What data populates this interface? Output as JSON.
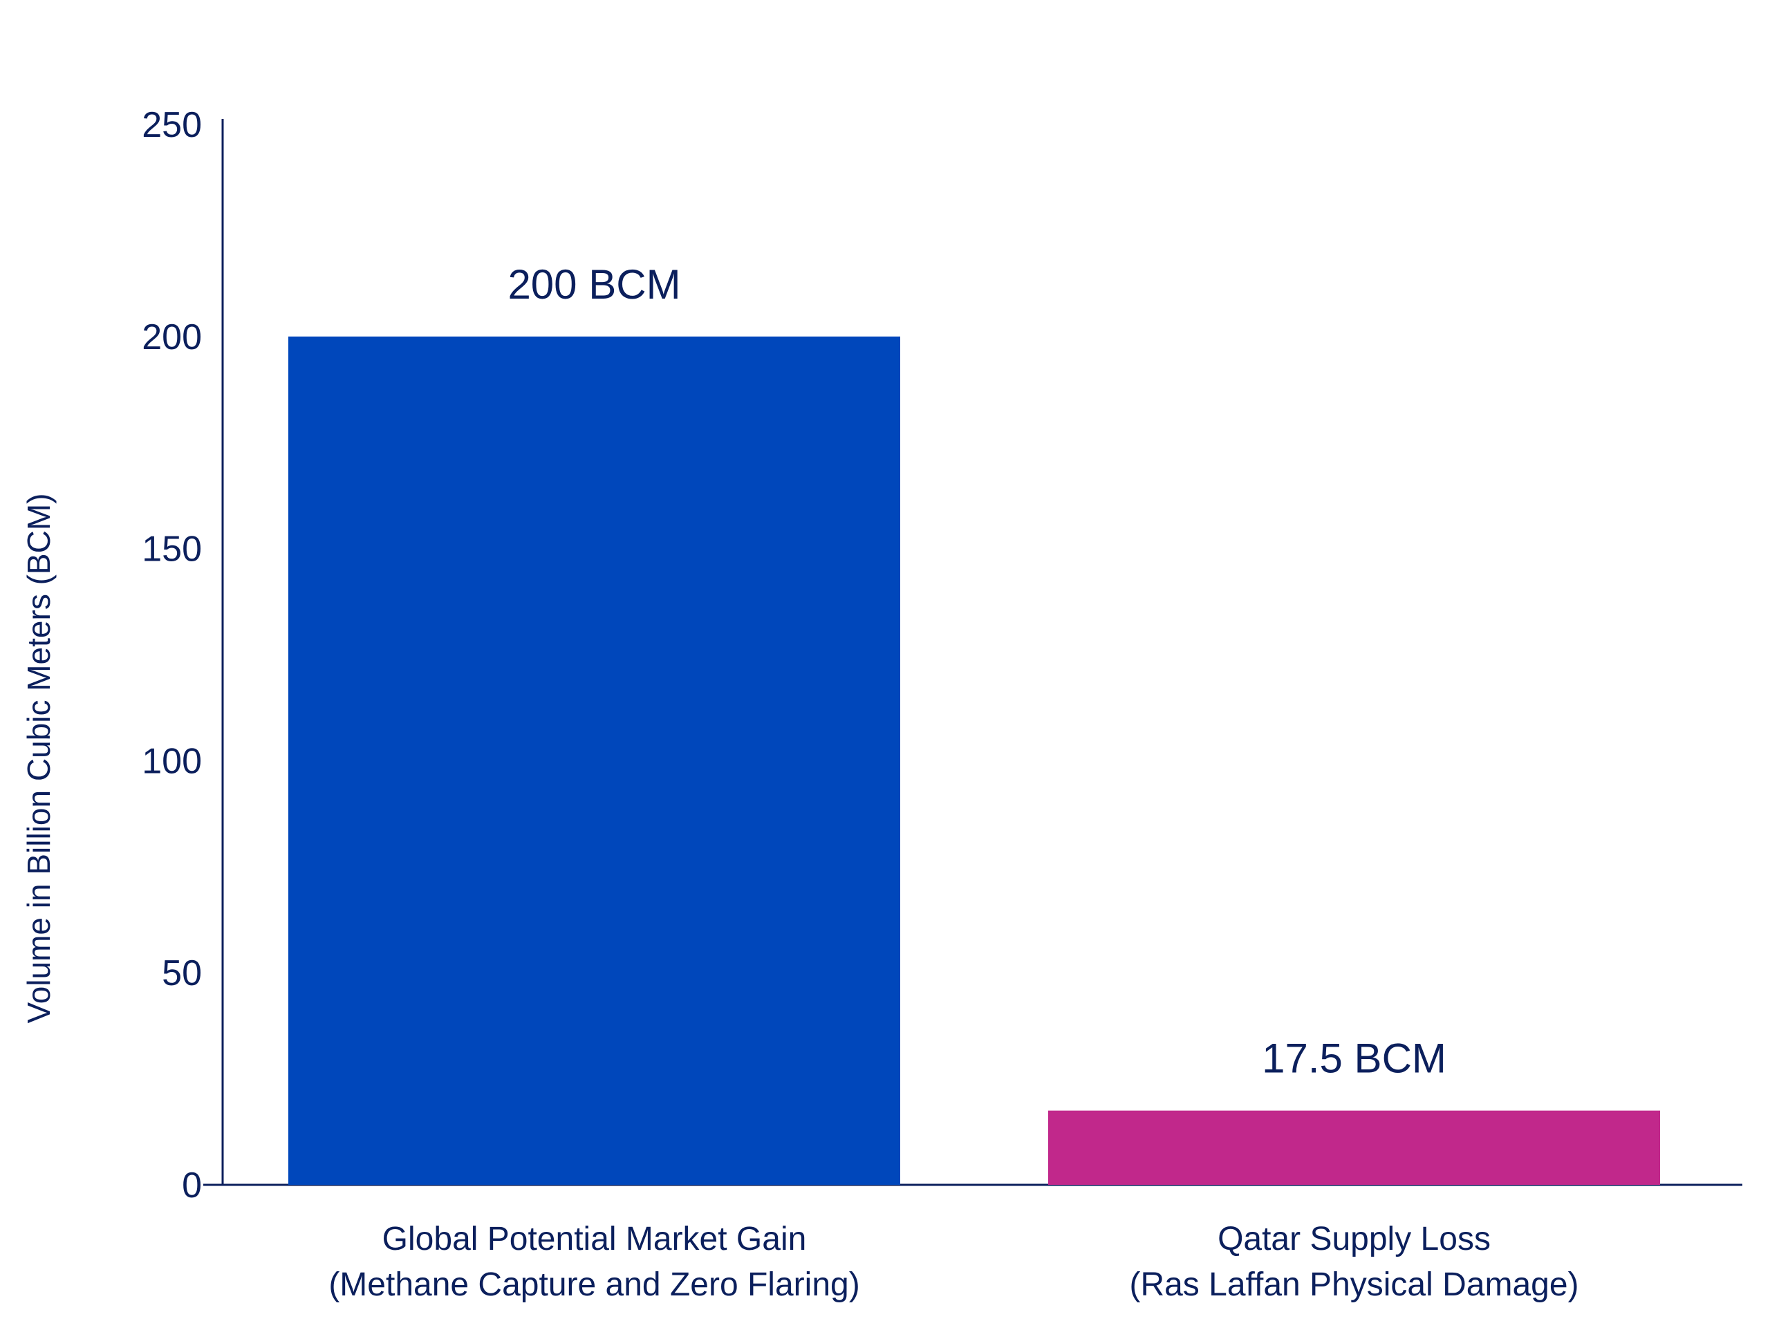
{
  "chart_data": {
    "type": "bar",
    "title": "",
    "ylabel": "Volume in Billion Cubic Meters (BCM)",
    "xlabel": "",
    "ylim": [
      0,
      250
    ],
    "yticks": [
      0,
      50,
      100,
      150,
      200,
      250
    ],
    "ytick_labels": [
      "0",
      "50",
      "100",
      "150",
      "200",
      "250"
    ],
    "grid": false,
    "legend": "none",
    "categories": [
      [
        "Global Potential Market Gain",
        "(Methane Capture and Zero Flaring)"
      ],
      [
        "Qatar Supply Loss",
        "(Ras Laffan Physical Damage)"
      ]
    ],
    "values": [
      200,
      17.5
    ],
    "data_labels": [
      "200 BCM",
      "17.5 BCM"
    ],
    "colors": [
      "#0047BB",
      "#C1288B"
    ],
    "text_color": "#0B1F5C",
    "axis_color": "#0B1F5C"
  }
}
